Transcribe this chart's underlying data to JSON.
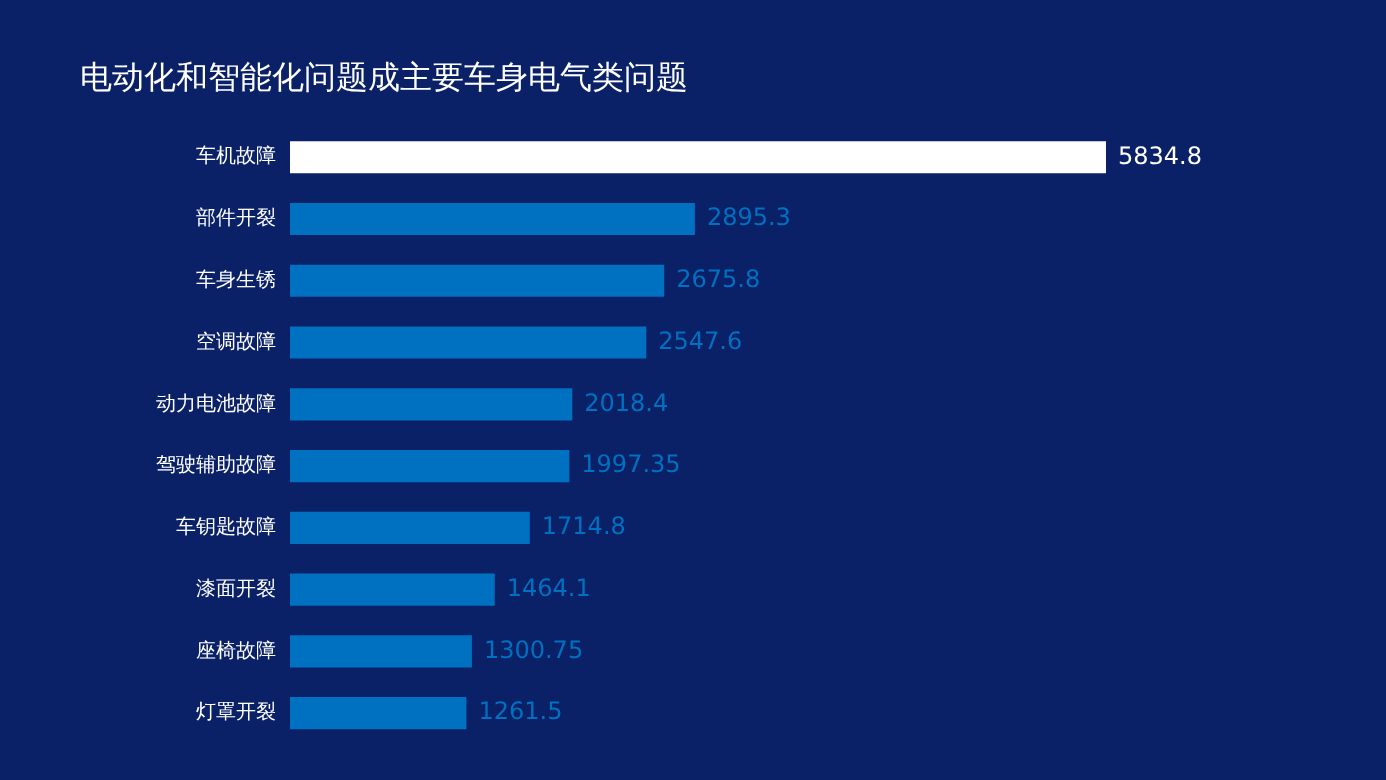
{
  "chart_data": {
    "type": "bar",
    "orientation": "horizontal",
    "title": "电动化和智能化问题成主要车身电气类问题",
    "categories": [
      "车机故障",
      "部件开裂",
      "车身生锈",
      "空调故障",
      "动力电池故障",
      "驾驶辅助故障",
      "车钥匙故障",
      "漆面开裂",
      "座椅故障",
      "灯罩开裂"
    ],
    "values": [
      5834.8,
      2895.3,
      2675.8,
      2547.6,
      2018.4,
      1997.35,
      1714.8,
      1464.1,
      1300.75,
      1261.5
    ],
    "colors": [
      "#ffffff",
      "#0070c0",
      "#0070c0",
      "#0070c0",
      "#0070c0",
      "#0070c0",
      "#0070c0",
      "#0070c0",
      "#0070c0",
      "#0070c0"
    ],
    "data_labels": true,
    "grid": false,
    "legend": false
  }
}
